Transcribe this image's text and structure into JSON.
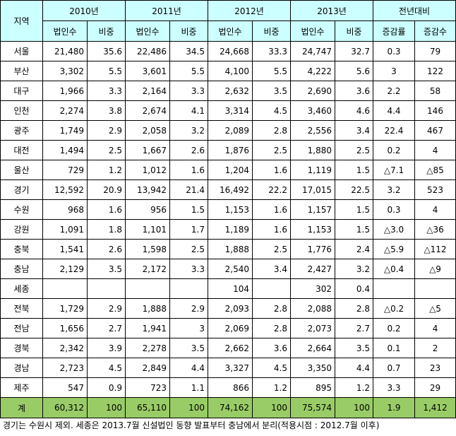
{
  "table": {
    "region_header": "지역",
    "years": [
      "2010년",
      "2011년",
      "2012년",
      "2013년"
    ],
    "compare_header": "전년대비",
    "sub_headers": [
      "법인수",
      "비중"
    ],
    "compare_sub_headers": [
      "증감률",
      "증감수"
    ],
    "rows": [
      {
        "region": "서울",
        "y2010": [
          "21,480",
          "35.6"
        ],
        "y2011": [
          "22,486",
          "34.5"
        ],
        "y2012": [
          "24,668",
          "33.3"
        ],
        "y2013": [
          "24,747",
          "32.7"
        ],
        "cmp": [
          "0.3",
          "79"
        ]
      },
      {
        "region": "부산",
        "y2010": [
          "3,302",
          "5.5"
        ],
        "y2011": [
          "3,601",
          "5.5"
        ],
        "y2012": [
          "4,100",
          "5.5"
        ],
        "y2013": [
          "4,222",
          "5.6"
        ],
        "cmp": [
          "3",
          "122"
        ]
      },
      {
        "region": "대구",
        "y2010": [
          "1,966",
          "3.3"
        ],
        "y2011": [
          "2,164",
          "3.3"
        ],
        "y2012": [
          "2,632",
          "3.5"
        ],
        "y2013": [
          "2,690",
          "3.6"
        ],
        "cmp": [
          "2.2",
          "58"
        ]
      },
      {
        "region": "인천",
        "y2010": [
          "2,274",
          "3.8"
        ],
        "y2011": [
          "2,674",
          "4.1"
        ],
        "y2012": [
          "3,314",
          "4.5"
        ],
        "y2013": [
          "3,460",
          "4.6"
        ],
        "cmp": [
          "4.4",
          "146"
        ]
      },
      {
        "region": "광주",
        "y2010": [
          "1,749",
          "2.9"
        ],
        "y2011": [
          "2,058",
          "3.2"
        ],
        "y2012": [
          "2,089",
          "2.8"
        ],
        "y2013": [
          "2,556",
          "3.4"
        ],
        "cmp": [
          "22.4",
          "467"
        ]
      },
      {
        "region": "대전",
        "y2010": [
          "1,494",
          "2.5"
        ],
        "y2011": [
          "1,667",
          "2.6"
        ],
        "y2012": [
          "1,876",
          "2.5"
        ],
        "y2013": [
          "1,880",
          "2.5"
        ],
        "cmp": [
          "0.2",
          "4"
        ]
      },
      {
        "region": "울산",
        "y2010": [
          "729",
          "1.2"
        ],
        "y2011": [
          "1,012",
          "1.6"
        ],
        "y2012": [
          "1,204",
          "1.6"
        ],
        "y2013": [
          "1,119",
          "1.5"
        ],
        "cmp": [
          "△7.1",
          "△85"
        ]
      },
      {
        "region": "경기",
        "y2010": [
          "12,592",
          "20.9"
        ],
        "y2011": [
          "13,942",
          "21.4"
        ],
        "y2012": [
          "16,492",
          "22.2"
        ],
        "y2013": [
          "17,015",
          "22.5"
        ],
        "cmp": [
          "3.2",
          "523"
        ]
      },
      {
        "region": "수원",
        "y2010": [
          "968",
          "1.6"
        ],
        "y2011": [
          "956",
          "1.5"
        ],
        "y2012": [
          "1,153",
          "1.6"
        ],
        "y2013": [
          "1,157",
          "1.5"
        ],
        "cmp": [
          "0.3",
          "4"
        ]
      },
      {
        "region": "강원",
        "y2010": [
          "1,091",
          "1.8"
        ],
        "y2011": [
          "1,101",
          "1.7"
        ],
        "y2012": [
          "1,189",
          "1.6"
        ],
        "y2013": [
          "1,153",
          "1.5"
        ],
        "cmp": [
          "△3.0",
          "△36"
        ]
      },
      {
        "region": "충북",
        "y2010": [
          "1,541",
          "2.6"
        ],
        "y2011": [
          "1,598",
          "2.5"
        ],
        "y2012": [
          "1,888",
          "2.5"
        ],
        "y2013": [
          "1,776",
          "2.4"
        ],
        "cmp": [
          "△5.9",
          "△112"
        ]
      },
      {
        "region": "충남",
        "y2010": [
          "2,129",
          "3.5"
        ],
        "y2011": [
          "2,172",
          "3.3"
        ],
        "y2012": [
          "2,540",
          "3.4"
        ],
        "y2013": [
          "2,427",
          "3.2"
        ],
        "cmp": [
          "△0.4",
          "△9"
        ]
      },
      {
        "region": "세종",
        "y2010": [
          "",
          ""
        ],
        "y2011": [
          "",
          ""
        ],
        "y2012": [
          "104",
          ""
        ],
        "y2013": [
          "302",
          "0.4"
        ],
        "cmp": [
          "",
          ""
        ]
      },
      {
        "region": "전북",
        "y2010": [
          "1,729",
          "2.9"
        ],
        "y2011": [
          "1,888",
          "2.9"
        ],
        "y2012": [
          "2,093",
          "2.8"
        ],
        "y2013": [
          "2,088",
          "2.8"
        ],
        "cmp": [
          "△0.2",
          "△5"
        ]
      },
      {
        "region": "전남",
        "y2010": [
          "1,656",
          "2.7"
        ],
        "y2011": [
          "1,941",
          "3"
        ],
        "y2012": [
          "2,069",
          "2.8"
        ],
        "y2013": [
          "2,073",
          "2.7"
        ],
        "cmp": [
          "0.2",
          "4"
        ]
      },
      {
        "region": "경북",
        "y2010": [
          "2,342",
          "3.9"
        ],
        "y2011": [
          "2,278",
          "3.5"
        ],
        "y2012": [
          "2,662",
          "3.6"
        ],
        "y2013": [
          "2,664",
          "3.5"
        ],
        "cmp": [
          "0.1",
          "2"
        ]
      },
      {
        "region": "경남",
        "y2010": [
          "2,723",
          "4.5"
        ],
        "y2011": [
          "2,849",
          "4.4"
        ],
        "y2012": [
          "3,327",
          "4.5"
        ],
        "y2013": [
          "3,350",
          "4.4"
        ],
        "cmp": [
          "0.7",
          "23"
        ]
      },
      {
        "region": "제주",
        "y2010": [
          "547",
          "0.9"
        ],
        "y2011": [
          "723",
          "1.1"
        ],
        "y2012": [
          "866",
          "1.2"
        ],
        "y2013": [
          "895",
          "1.2"
        ],
        "cmp": [
          "3.3",
          "29"
        ]
      }
    ],
    "total": {
      "region": "계",
      "y2010": [
        "60,312",
        "100"
      ],
      "y2011": [
        "65,110",
        "100"
      ],
      "y2012": [
        "74,162",
        "100"
      ],
      "y2013": [
        "75,574",
        "100"
      ],
      "cmp": [
        "1.9",
        "1,412"
      ]
    }
  },
  "footnote": "경기는 수원시 제외. 세종은 2013.7월 신설법인 동향 발표부터 충남에서 분리(적용시점 : 2012.7월 이후)",
  "colors": {
    "header_bg": "#ccffff",
    "total_bg": "#99cc66"
  }
}
